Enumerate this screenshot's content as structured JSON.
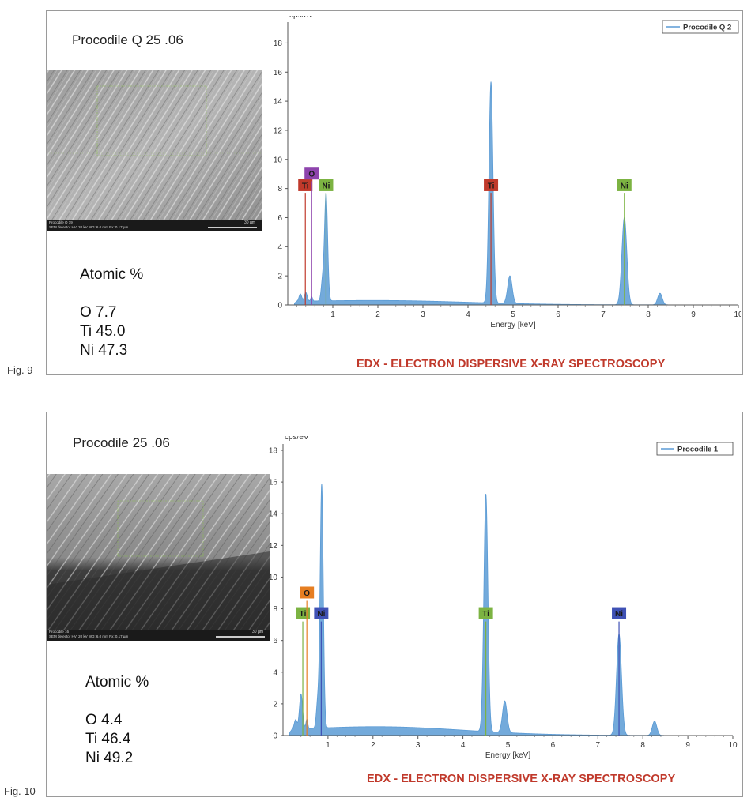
{
  "figures": [
    {
      "fig_label": "Fig. 9",
      "sample_title": "Procodile Q 25 .06",
      "sem_info_line1": "Procodile Q 19",
      "sem_info_line2": "SEM detector   HV: 20 kV   WD: 6.0 mm   Px: 0.17 µm",
      "sem_scale_label": "30 µm",
      "atomic_heading": "Atomic %",
      "composition": [
        "O 7.7",
        "Ti 45.0",
        "Ni 47.3"
      ],
      "caption": "EDX - ELECTRON DISPERSIVE X-RAY SPECTROSCOPY"
    },
    {
      "fig_label": "Fig. 10",
      "sample_title": "Procodile 25 .06",
      "sem_info_line1": "Procodile 16",
      "sem_info_line2": "SEM detector   HV: 20 kV   WD: 6.0 mm   Px: 0.17 µm",
      "sem_scale_label": "30 µm",
      "atomic_heading": "Atomic %",
      "composition": [
        "O 4.4",
        "Ti 46.4",
        "Ni 49.2"
      ],
      "caption": "EDX - ELECTRON DISPERSIVE X-RAY SPECTROSCOPY"
    }
  ],
  "chart_data": [
    {
      "type": "area",
      "ylabel": "cps/eV",
      "xlabel": "Energy [keV]",
      "xlim": [
        0,
        10
      ],
      "ylim": [
        0,
        19
      ],
      "xticks": [
        1,
        2,
        3,
        4,
        5,
        6,
        7,
        8,
        9,
        10
      ],
      "yticks": [
        0,
        2,
        4,
        6,
        8,
        10,
        12,
        14,
        16,
        18
      ],
      "grid": false,
      "legend_position": "top-right",
      "series": [
        {
          "name": "Procodile Q 2",
          "color": "#5b9bd5",
          "background": 0.25,
          "peaks": [
            {
              "x": 0.28,
              "y": 0.5,
              "w": 0.03
            },
            {
              "x": 0.4,
              "y": 0.6,
              "w": 0.03
            },
            {
              "x": 0.53,
              "y": 0.3,
              "w": 0.02
            },
            {
              "x": 0.77,
              "y": 1.3,
              "w": 0.03
            },
            {
              "x": 0.85,
              "y": 7.4,
              "w": 0.035
            },
            {
              "x": 4.51,
              "y": 15.2,
              "w": 0.045
            },
            {
              "x": 4.93,
              "y": 1.9,
              "w": 0.05
            },
            {
              "x": 7.47,
              "y": 6.0,
              "w": 0.055
            },
            {
              "x": 8.26,
              "y": 0.8,
              "w": 0.05
            }
          ]
        }
      ],
      "element_markers": [
        {
          "label": "Ti",
          "x": 0.39,
          "color": "#c0392b",
          "line_top": 7.7,
          "box_y": 8.2
        },
        {
          "label": "O",
          "x": 0.53,
          "color": "#8e44ad",
          "line_top": 8.5,
          "box_y": 9.0
        },
        {
          "label": "Ni",
          "x": 0.85,
          "color": "#7cb342",
          "line_top": 7.7,
          "box_y": 8.2
        },
        {
          "label": "Ti",
          "x": 4.51,
          "color": "#c0392b",
          "line_top": 7.7,
          "box_y": 8.2
        },
        {
          "label": "Ni",
          "x": 7.47,
          "color": "#7cb342",
          "line_top": 7.7,
          "box_y": 8.2
        }
      ]
    },
    {
      "type": "area",
      "ylabel": "cps/eV",
      "xlabel": "Energy [keV]",
      "xlim": [
        0,
        10
      ],
      "ylim": [
        0,
        18
      ],
      "xticks": [
        1,
        2,
        3,
        4,
        5,
        6,
        7,
        8,
        9,
        10
      ],
      "yticks": [
        0,
        2,
        4,
        6,
        8,
        10,
        12,
        14,
        16,
        18
      ],
      "grid": false,
      "legend_position": "top-right",
      "series": [
        {
          "name": "Procodile 1",
          "color": "#5b9bd5",
          "background": 0.5,
          "peaks": [
            {
              "x": 0.28,
              "y": 0.6,
              "w": 0.03
            },
            {
              "x": 0.4,
              "y": 2.2,
              "w": 0.035
            },
            {
              "x": 0.53,
              "y": 0.6,
              "w": 0.02
            },
            {
              "x": 0.77,
              "y": 1.6,
              "w": 0.03
            },
            {
              "x": 0.86,
              "y": 15.4,
              "w": 0.035
            },
            {
              "x": 4.51,
              "y": 15.0,
              "w": 0.045
            },
            {
              "x": 4.93,
              "y": 2.0,
              "w": 0.05
            },
            {
              "x": 7.47,
              "y": 6.4,
              "w": 0.055
            },
            {
              "x": 8.26,
              "y": 0.9,
              "w": 0.05
            }
          ]
        }
      ],
      "element_markers": [
        {
          "label": "Ti",
          "x": 0.44,
          "color": "#7cb342",
          "line_top": 7.2,
          "box_y": 7.7
        },
        {
          "label": "O",
          "x": 0.53,
          "color": "#e67e22",
          "line_top": 8.5,
          "box_y": 9.0
        },
        {
          "label": "Ni",
          "x": 0.85,
          "color": "#3f51b5",
          "line_top": 7.2,
          "box_y": 7.7
        },
        {
          "label": "Ti",
          "x": 4.51,
          "color": "#7cb342",
          "line_top": 7.2,
          "box_y": 7.7
        },
        {
          "label": "Ni",
          "x": 7.47,
          "color": "#3f51b5",
          "line_top": 7.2,
          "box_y": 7.7
        }
      ]
    }
  ]
}
